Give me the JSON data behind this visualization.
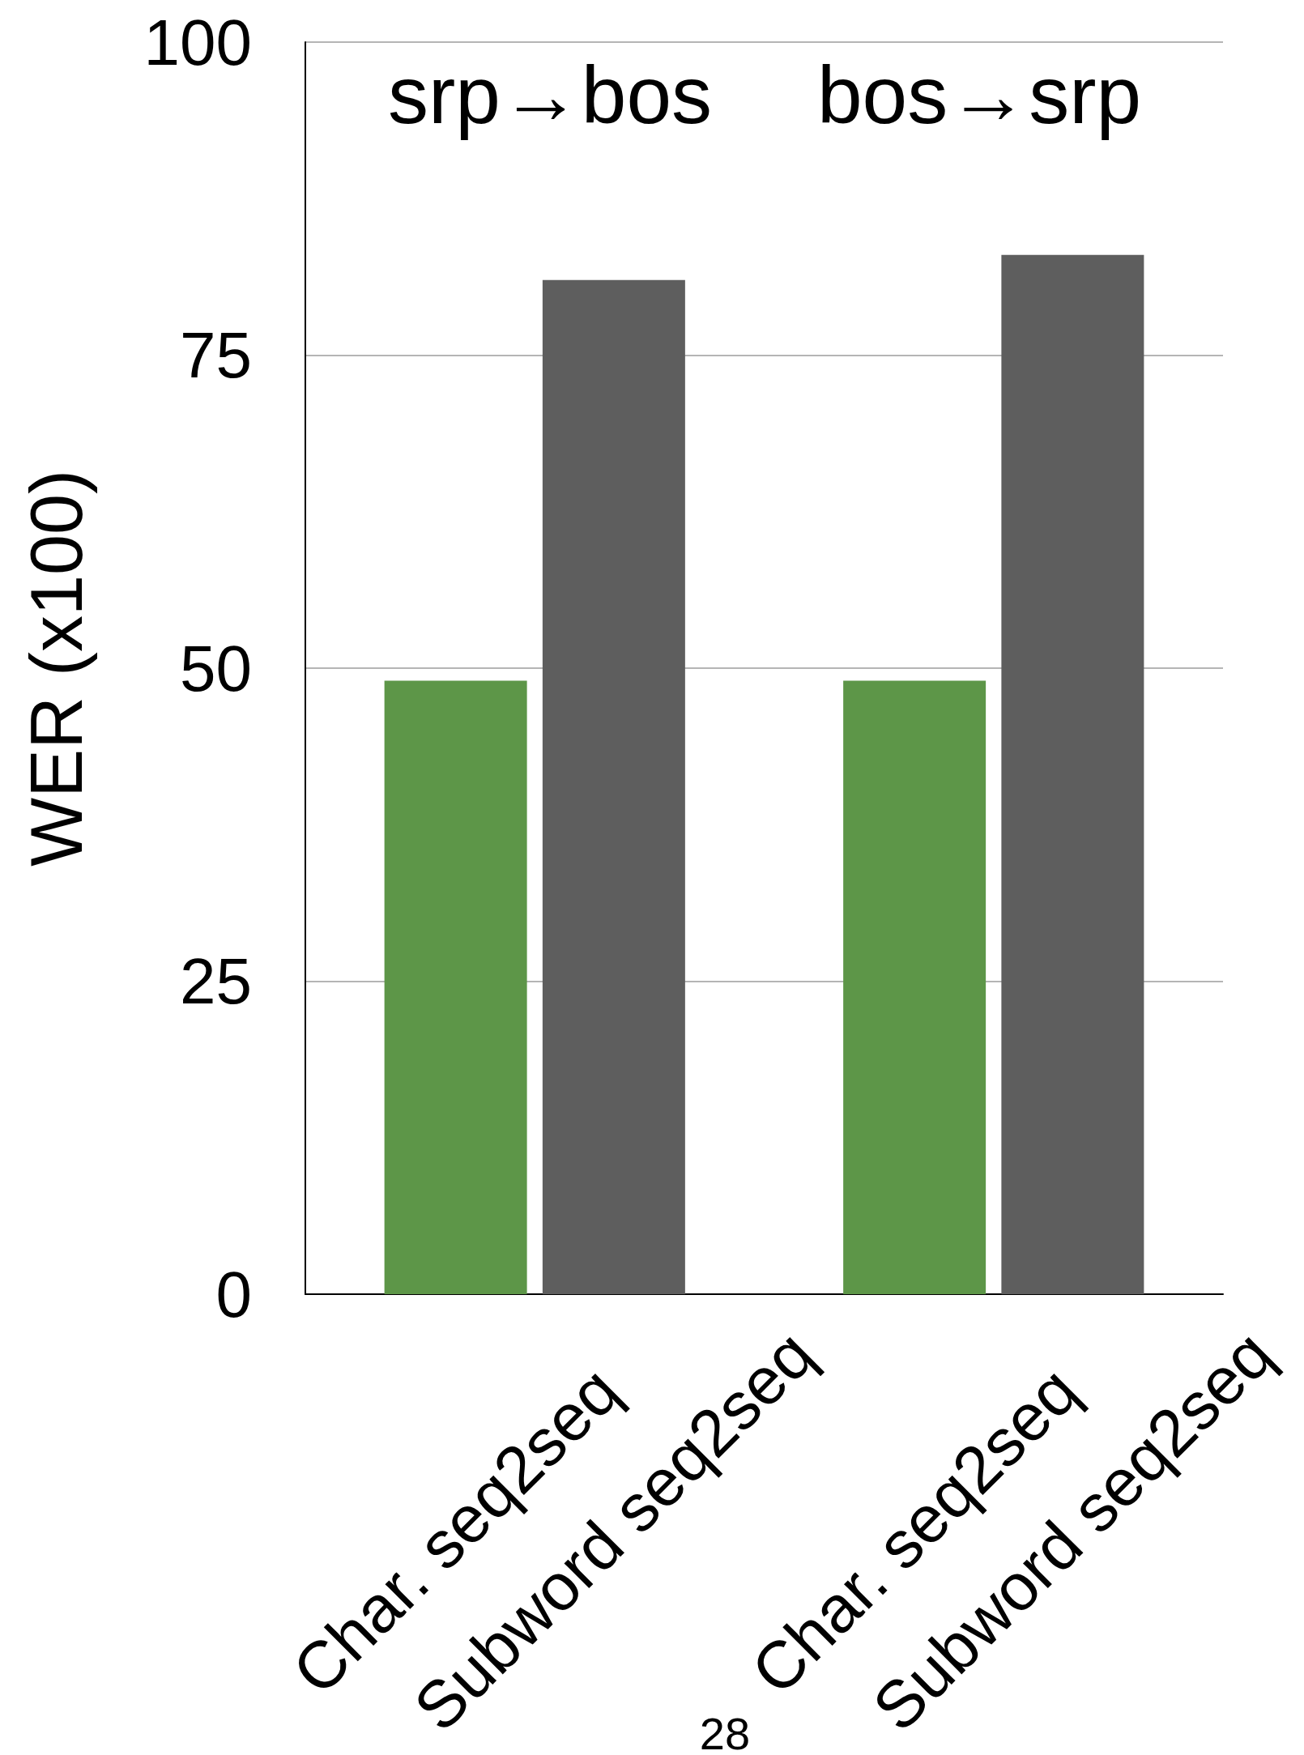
{
  "chart_data": {
    "type": "bar",
    "ylabel": "WER (x100)",
    "categories": [
      "Char. seq2seq",
      "Subword seq2seq",
      "Char. seq2seq",
      "Subword seq2seq"
    ],
    "series": [
      {
        "color": "#5d9648",
        "values": [
          49,
          null,
          49,
          null
        ]
      },
      {
        "color": "#5e5e5e",
        "values": [
          null,
          81,
          null,
          83
        ]
      }
    ],
    "ylim": [
      0,
      100
    ],
    "yticks": [
      0,
      25,
      50,
      75,
      100
    ],
    "grid": "y",
    "annotations": [
      "srp→bos",
      "bos→srp",
      "28"
    ]
  }
}
